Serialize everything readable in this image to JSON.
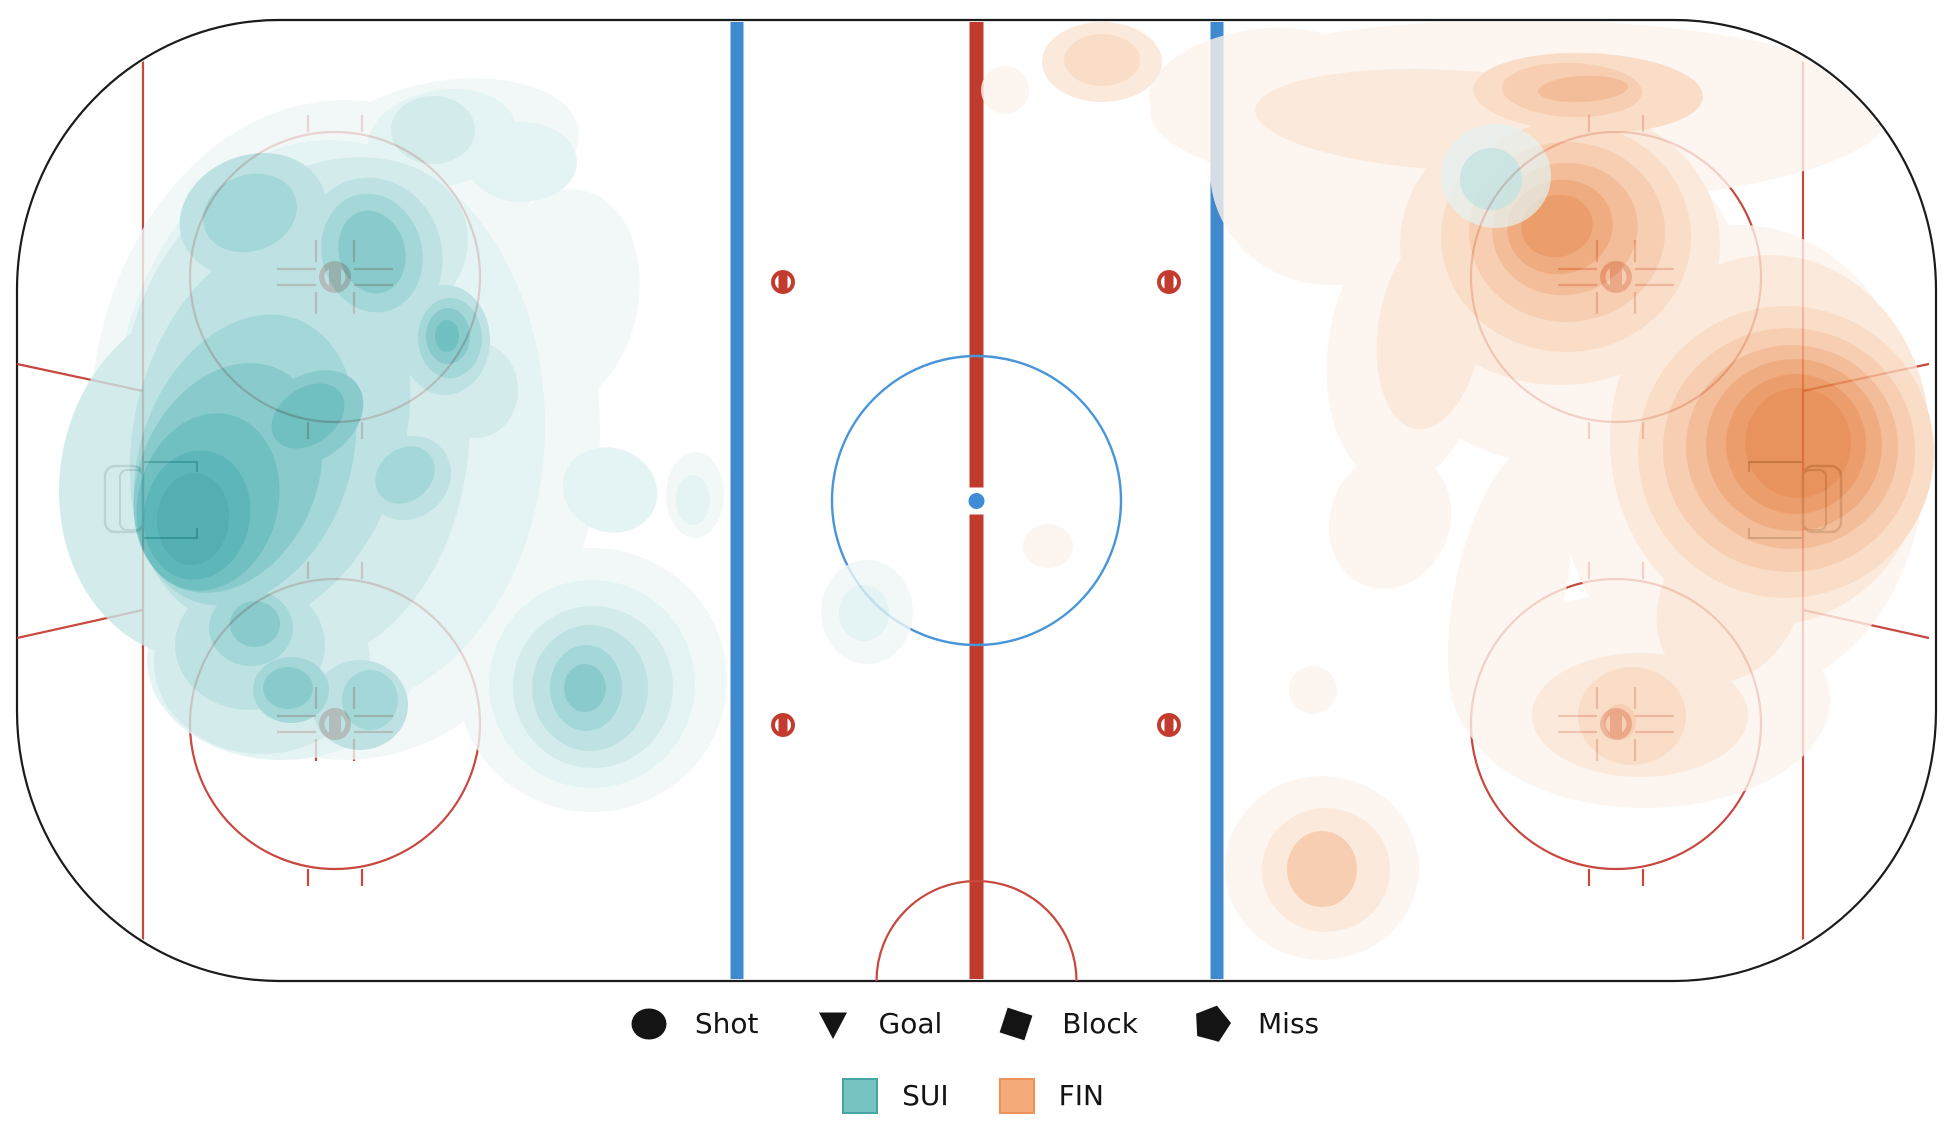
{
  "legend": {
    "markers": [
      {
        "label": "Shot",
        "shape": "circle"
      },
      {
        "label": "Goal",
        "shape": "triangle-down"
      },
      {
        "label": "Block",
        "shape": "square"
      },
      {
        "label": "Miss",
        "shape": "pentagon"
      }
    ],
    "teams": [
      {
        "label": "SUI",
        "fill": "#77c3c2",
        "stroke": "#47a5a4"
      },
      {
        "label": "FIN",
        "fill": "#f5ab79",
        "stroke": "#ea9257"
      }
    ]
  },
  "chart_data": {
    "type": "heatmap",
    "description": "Ice-hockey shot density contour map. SUI attacks the left end (teal), FIN the right end (orange). Density is shown as stepped contour levels; no axes or numeric scale are displayed.",
    "legend_position": "bottom-center",
    "rink_colors": {
      "boards": "#1b1b1b",
      "red_line": "#bf3b2e",
      "blue_line": "#4189ce",
      "thin_red": "#c8473e",
      "circle_blue": "#4a95d8",
      "center_dot_blue": "#3f8cd6",
      "crease_gray": "#5c7373",
      "goal_gray": "#848c8d"
    },
    "palettes": {
      "SUI": [
        "#eff7f7",
        "#def0f0",
        "#c9e6e7",
        "#aedbdc",
        "#8ecdce",
        "#6cbec0",
        "#4db0b2",
        "#35a4a7",
        "#2a9c9f"
      ],
      "FIN": [
        "#fdf3eb",
        "#fbe5d3",
        "#f8d5ba",
        "#f5c29e",
        "#f1ad80",
        "#ec9861",
        "#e78647",
        "#e37936"
      ]
    },
    "blob_format": "[palette_level, cx, cy, rx, ry, rotation_deg, optional_alpha] in 1946x990 rink pixel coords, listed in draw order (light to dark)",
    "series": [
      {
        "name": "FIN",
        "blobs": [
          [
            0,
            1520,
            112,
            370,
            92,
            0
          ],
          [
            0,
            1253,
            82,
            105,
            52,
            -10
          ],
          [
            0,
            1005,
            90,
            24,
            24,
            0
          ],
          [
            0,
            1330,
            170,
            120,
            115,
            0
          ],
          [
            0,
            1408,
            350,
            80,
            135,
            8
          ],
          [
            0,
            1390,
            520,
            60,
            70,
            20
          ],
          [
            0,
            1560,
            295,
            185,
            170,
            0
          ],
          [
            0,
            1740,
            460,
            185,
            235,
            0
          ],
          [
            0,
            1645,
            700,
            185,
            108,
            0
          ],
          [
            0,
            1510,
            590,
            55,
            150,
            12
          ],
          [
            0,
            1322,
            868,
            97,
            92,
            0
          ],
          [
            0,
            1313,
            690,
            24,
            24,
            0
          ],
          [
            0,
            1048,
            546,
            25,
            22,
            0
          ],
          [
            1,
            1560,
            245,
            160,
            140,
            0
          ],
          [
            1,
            1450,
            120,
            195,
            50,
            3
          ],
          [
            1,
            1770,
            440,
            160,
            185,
            0
          ],
          [
            1,
            1640,
            715,
            108,
            62,
            0
          ],
          [
            1,
            1730,
            600,
            68,
            88,
            30
          ],
          [
            1,
            1430,
            330,
            52,
            100,
            8
          ],
          [
            1,
            1326,
            870,
            64,
            62,
            0
          ],
          [
            1,
            1102,
            62,
            60,
            40,
            0
          ],
          [
            2,
            1566,
            237,
            125,
            115,
            0
          ],
          [
            2,
            1588,
            93,
            115,
            40,
            2
          ],
          [
            2,
            1786,
            452,
            148,
            146,
            0
          ],
          [
            2,
            1632,
            716,
            54,
            49,
            0
          ],
          [
            2,
            1102,
            60,
            38,
            26,
            0
          ],
          [
            3,
            1567,
            232,
            98,
            90,
            0
          ],
          [
            3,
            1572,
            90,
            70,
            27,
            2
          ],
          [
            3,
            1789,
            450,
            126,
            122,
            0
          ],
          [
            3,
            1620,
            722,
            16,
            18,
            0
          ],
          [
            3,
            1322,
            869,
            35,
            38,
            0
          ],
          [
            4,
            1565,
            229,
            73,
            66,
            -10
          ],
          [
            4,
            1583,
            89,
            45,
            13,
            -3
          ],
          [
            4,
            1792,
            447,
            106,
            102,
            0
          ],
          [
            5,
            1560,
            227,
            53,
            47,
            -12
          ],
          [
            5,
            1794,
            445,
            88,
            86,
            0
          ],
          [
            6,
            1557,
            226,
            36,
            31,
            -12
          ],
          [
            6,
            1796,
            444,
            70,
            70,
            0
          ],
          [
            7,
            1798,
            443,
            53,
            55,
            0
          ]
        ]
      },
      {
        "name": "SUI",
        "blobs": [
          [
            0,
            345,
            430,
            255,
            330,
            0
          ],
          [
            0,
            450,
            148,
            130,
            68,
            -8
          ],
          [
            0,
            560,
            300,
            78,
            112,
            12
          ],
          [
            0,
            592,
            680,
            135,
            132,
            0
          ],
          [
            0,
            695,
            495,
            29,
            43,
            0
          ],
          [
            0,
            867,
            612,
            46,
            52,
            0
          ],
          [
            1,
            330,
            425,
            215,
            285,
            0
          ],
          [
            1,
            442,
            138,
            75,
            48,
            -10
          ],
          [
            1,
            522,
            162,
            55,
            40,
            0
          ],
          [
            1,
            478,
            390,
            62,
            68,
            0
          ],
          [
            1,
            592,
            684,
            103,
            104,
            0
          ],
          [
            1,
            610,
            490,
            48,
            42,
            20
          ],
          [
            1,
            693,
            500,
            17,
            25,
            0
          ],
          [
            1,
            864,
            613,
            25,
            28,
            0
          ],
          [
            1,
            282,
            660,
            135,
            100,
            0
          ],
          [
            2,
            295,
            420,
            175,
            245,
            0
          ],
          [
            2,
            433,
            130,
            42,
            34,
            0
          ],
          [
            2,
            593,
            687,
            80,
            81,
            0
          ],
          [
            2,
            262,
            662,
            108,
            92,
            0
          ],
          [
            2,
            476,
            390,
            42,
            48,
            0
          ],
          [
            2,
            340,
            255,
            130,
            95,
            -15
          ],
          [
            2,
            210,
            480,
            150,
            180,
            10
          ],
          [
            3,
            270,
            430,
            135,
            200,
            15
          ],
          [
            3,
            590,
            688,
            58,
            63,
            0
          ],
          [
            3,
            250,
            645,
            75,
            65,
            0
          ],
          [
            3,
            360,
            705,
            48,
            45,
            0
          ],
          [
            3,
            372,
            255,
            70,
            78,
            -15
          ],
          [
            3,
            253,
            215,
            75,
            60,
            -20
          ],
          [
            3,
            445,
            340,
            45,
            55,
            0
          ],
          [
            3,
            408,
            478,
            45,
            40,
            -40
          ],
          [
            4,
            245,
            460,
            105,
            150,
            20
          ],
          [
            4,
            586,
            688,
            36,
            43,
            0
          ],
          [
            4,
            251,
            628,
            42,
            38,
            0
          ],
          [
            4,
            291,
            690,
            38,
            33,
            0
          ],
          [
            4,
            372,
            253,
            50,
            60,
            -15
          ],
          [
            4,
            250,
            213,
            48,
            38,
            -20
          ],
          [
            4,
            450,
            338,
            32,
            40,
            0
          ],
          [
            4,
            405,
            475,
            32,
            26,
            -40
          ],
          [
            4,
            370,
            700,
            28,
            30,
            0
          ],
          [
            5,
            228,
            478,
            88,
            120,
            25
          ],
          [
            5,
            310,
            418,
            58,
            42,
            -35
          ],
          [
            5,
            585,
            688,
            21,
            24,
            0
          ],
          [
            5,
            372,
            252,
            33,
            42,
            -15
          ],
          [
            5,
            448,
            336,
            22,
            28,
            0
          ],
          [
            5,
            255,
            624,
            25,
            23,
            0
          ],
          [
            5,
            288,
            688,
            25,
            21,
            0
          ],
          [
            6,
            208,
            502,
            70,
            90,
            15
          ],
          [
            6,
            308,
            416,
            40,
            28,
            -35
          ],
          [
            6,
            447,
            336,
            12,
            16,
            0
          ],
          [
            7,
            197,
            515,
            53,
            65,
            10
          ],
          [
            8,
            193,
            519,
            36,
            46,
            5
          ],
          [
            1,
            1496,
            176,
            55,
            52,
            0,
            0.7
          ],
          [
            3,
            1491,
            179,
            31,
            31,
            0,
            0.7
          ]
        ]
      }
    ]
  }
}
